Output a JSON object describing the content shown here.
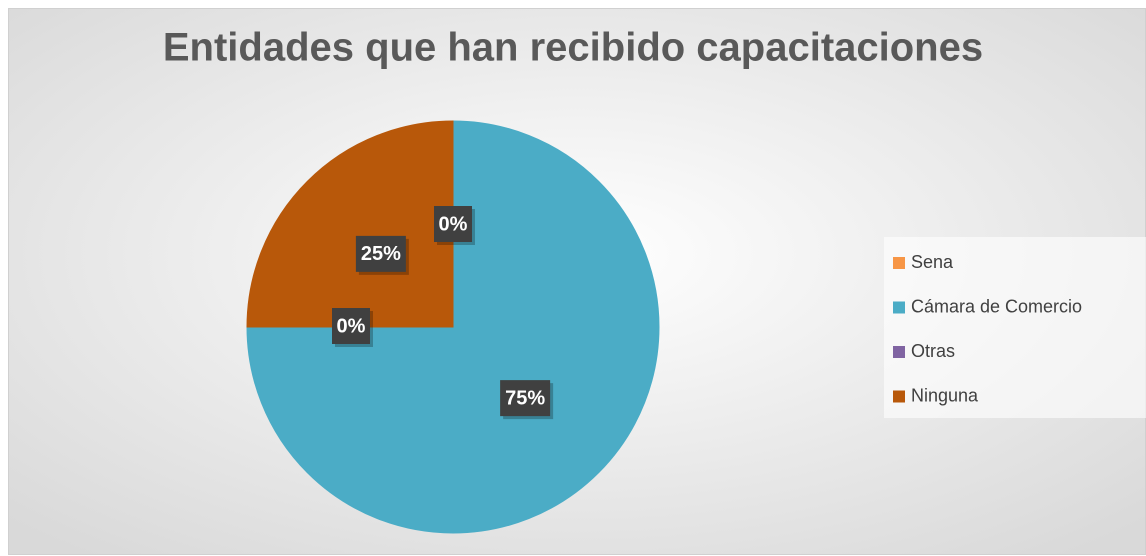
{
  "chart_data": {
    "type": "pie",
    "title": "Entidades que han recibido capacitaciones",
    "categories": [
      "Sena",
      "Cámara de Comercio",
      "Otras",
      "Ninguna"
    ],
    "values": [
      0,
      75,
      0,
      25
    ],
    "value_labels": [
      "0%",
      "75%",
      "0%",
      "25%"
    ],
    "colors": [
      "#f79646",
      "#4bacc6",
      "#8064a2",
      "#b8580a"
    ],
    "legend": "right"
  }
}
